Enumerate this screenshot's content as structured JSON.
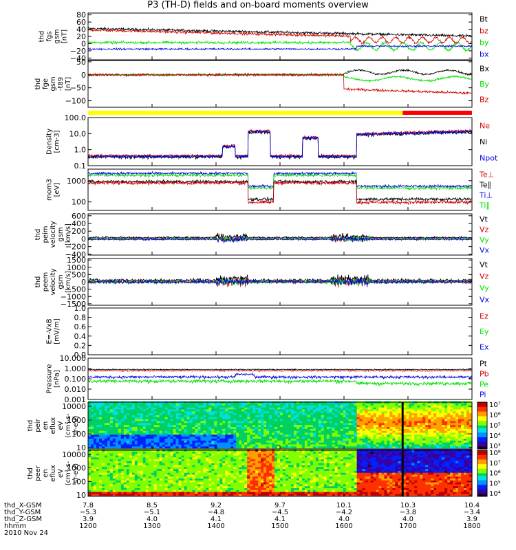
{
  "title": "P3 (TH-D) fields and on-board moments overview",
  "date": "2010 Nov 24",
  "colors": {
    "black": "#000000",
    "red": "#d00000",
    "green": "#00e000",
    "blue": "#0000dd",
    "yellow": "#ffff00",
    "barred": "#ff0000"
  },
  "chart_data": [
    {
      "type": "line",
      "ylabel": [
        "thd",
        "fgs",
        "gsm",
        "[nT]"
      ],
      "ylim": [
        -45,
        85
      ],
      "ticks": [
        "80",
        "60",
        "40",
        "20",
        "0",
        "−20",
        "−40"
      ],
      "tick_values": [
        80,
        60,
        40,
        20,
        0,
        -20,
        -40
      ],
      "legend": [
        "Bt",
        "bz",
        "by",
        "bx"
      ],
      "legend_colors": [
        "black",
        "red",
        "green",
        "blue"
      ]
    },
    {
      "type": "line",
      "ylabel": [
        "thd",
        "fge",
        "gsm",
        "-t89",
        "[nT]"
      ],
      "ylim": [
        -125,
        55
      ],
      "ticks": [
        "50",
        "0",
        "−50",
        "−100"
      ],
      "tick_values": [
        50,
        0,
        -50,
        -100
      ],
      "legend": [
        "Bx",
        "By",
        "Bz"
      ],
      "legend_colors": [
        "black",
        "green",
        "red"
      ]
    },
    {
      "type": "bar",
      "name": "mode-bar",
      "segments": [
        {
          "from": "12:00",
          "to": "16:55",
          "color": "yellow"
        },
        {
          "from": "16:55",
          "to": "18:00",
          "color": "barred"
        }
      ]
    },
    {
      "type": "line",
      "ylabel": [
        "Density",
        "[cm-3]"
      ],
      "scale": "log",
      "ylim": [
        0.1,
        100
      ],
      "ticks": [
        "100.0",
        "10.0",
        "1.0",
        "0.1"
      ],
      "tick_values": [
        100,
        10,
        1,
        0.1
      ],
      "legend": [
        "Ne",
        "Ni",
        "Npot"
      ],
      "legend_colors": [
        "red",
        "black",
        "blue"
      ]
    },
    {
      "type": "line",
      "ylabel": [
        "mom3",
        "[eV]"
      ],
      "scale": "log",
      "ylim": [
        40,
        3500
      ],
      "ticks": [
        "1000",
        "100"
      ],
      "tick_values": [
        1000,
        100
      ],
      "legend": [
        "Te⊥",
        "Te∥",
        "Ti⊥",
        "Ti∥"
      ],
      "legend_colors": [
        "red",
        "black",
        "blue",
        "green"
      ]
    },
    {
      "type": "line",
      "ylabel": [
        "thd",
        "peim",
        "velocity",
        "gsm",
        "[km/s]"
      ],
      "ylim": [
        -420,
        650
      ],
      "ticks": [
        "600",
        "400",
        "200",
        "0",
        "−200",
        "−400"
      ],
      "tick_values": [
        600,
        400,
        200,
        0,
        -200,
        -400
      ],
      "legend": [
        "Vt",
        "Vz",
        "Vy",
        "Vx"
      ],
      "legend_colors": [
        "black",
        "red",
        "green",
        "blue"
      ]
    },
    {
      "type": "line",
      "ylabel": [
        "thd",
        "peem",
        "velocity",
        "gsm",
        "[km/s]"
      ],
      "ylim": [
        -1600,
        1600
      ],
      "ticks": [
        "1500",
        "1000",
        "500",
        "0",
        "−500",
        "−1000",
        "−1500"
      ],
      "tick_values": [
        1500,
        1000,
        500,
        0,
        -500,
        -1000,
        -1500
      ],
      "legend": [
        "Vt",
        "Vz",
        "Vy",
        "Vx"
      ],
      "legend_colors": [
        "black",
        "red",
        "green",
        "blue"
      ]
    },
    {
      "type": "line",
      "ylabel": [
        "E=-VxB",
        "[mV/m]"
      ],
      "ylim": [
        0,
        1
      ],
      "ticks": [
        "1.0",
        "0.8",
        "0.6",
        "0.4",
        "0.2",
        "0.0"
      ],
      "tick_values": [
        1,
        0.8,
        0.6,
        0.4,
        0.2,
        0
      ],
      "legend": [
        "Ez",
        "Ey",
        "Ex"
      ],
      "legend_colors": [
        "red",
        "green",
        "blue"
      ]
    },
    {
      "type": "line",
      "ylabel": [
        "Pressure",
        "[nPa]"
      ],
      "scale": "log",
      "ylim": [
        0.001,
        10
      ],
      "ticks": [
        "10.000",
        "1.000",
        "0.100",
        "0.010",
        "0.001"
      ],
      "tick_values": [
        10,
        1,
        0.1,
        0.01,
        0.001
      ],
      "legend": [
        "Pt",
        "Pb",
        "Pe",
        "Pi"
      ],
      "legend_colors": [
        "black",
        "red",
        "green",
        "blue"
      ]
    },
    {
      "type": "heatmap",
      "ylabel": [
        "thd",
        "peir",
        "en",
        "eflux",
        "eV",
        "(cm²-s-",
        "sr-eV)"
      ],
      "scale": "log",
      "ylim": [
        8,
        20000
      ],
      "ticks": [
        "10000",
        "1000",
        "100",
        "10"
      ],
      "tick_values": [
        10000,
        1000,
        100,
        10
      ],
      "colorbar": [
        "10⁷",
        "10⁶",
        "10⁵",
        "10⁴",
        "10³"
      ]
    },
    {
      "type": "heatmap",
      "ylabel": [
        "thd",
        "peer",
        "en",
        "eflux",
        "eV",
        "(cm²-s-",
        "sr-eV)"
      ],
      "scale": "log",
      "ylim": [
        8,
        20000
      ],
      "ticks": [
        "10000",
        "1000",
        "100",
        "10"
      ],
      "tick_values": [
        10000,
        1000,
        100,
        10
      ],
      "colorbar": [
        "10⁸",
        "10⁷",
        "10⁶",
        "10⁵",
        "10⁴"
      ]
    }
  ],
  "x_axis": {
    "row_labels": [
      "thd_X-GSM",
      "thd_Y-GSM",
      "thd_Z-GSM",
      "hhmm"
    ],
    "columns": [
      [
        "7.8",
        "−5.3",
        "3.9",
        "1200"
      ],
      [
        "8.5",
        "−5.1",
        "4.0",
        "1300"
      ],
      [
        "9.2",
        "−4.8",
        "4.1",
        "1400"
      ],
      [
        "9.7",
        "−4.5",
        "4.1",
        "1500"
      ],
      [
        "10.1",
        "−4.2",
        "4.0",
        "1600"
      ],
      [
        "10.3",
        "−3.8",
        "4.0",
        "1700"
      ],
      [
        "10.4",
        "−3.4",
        "3.9",
        "1800"
      ]
    ]
  }
}
